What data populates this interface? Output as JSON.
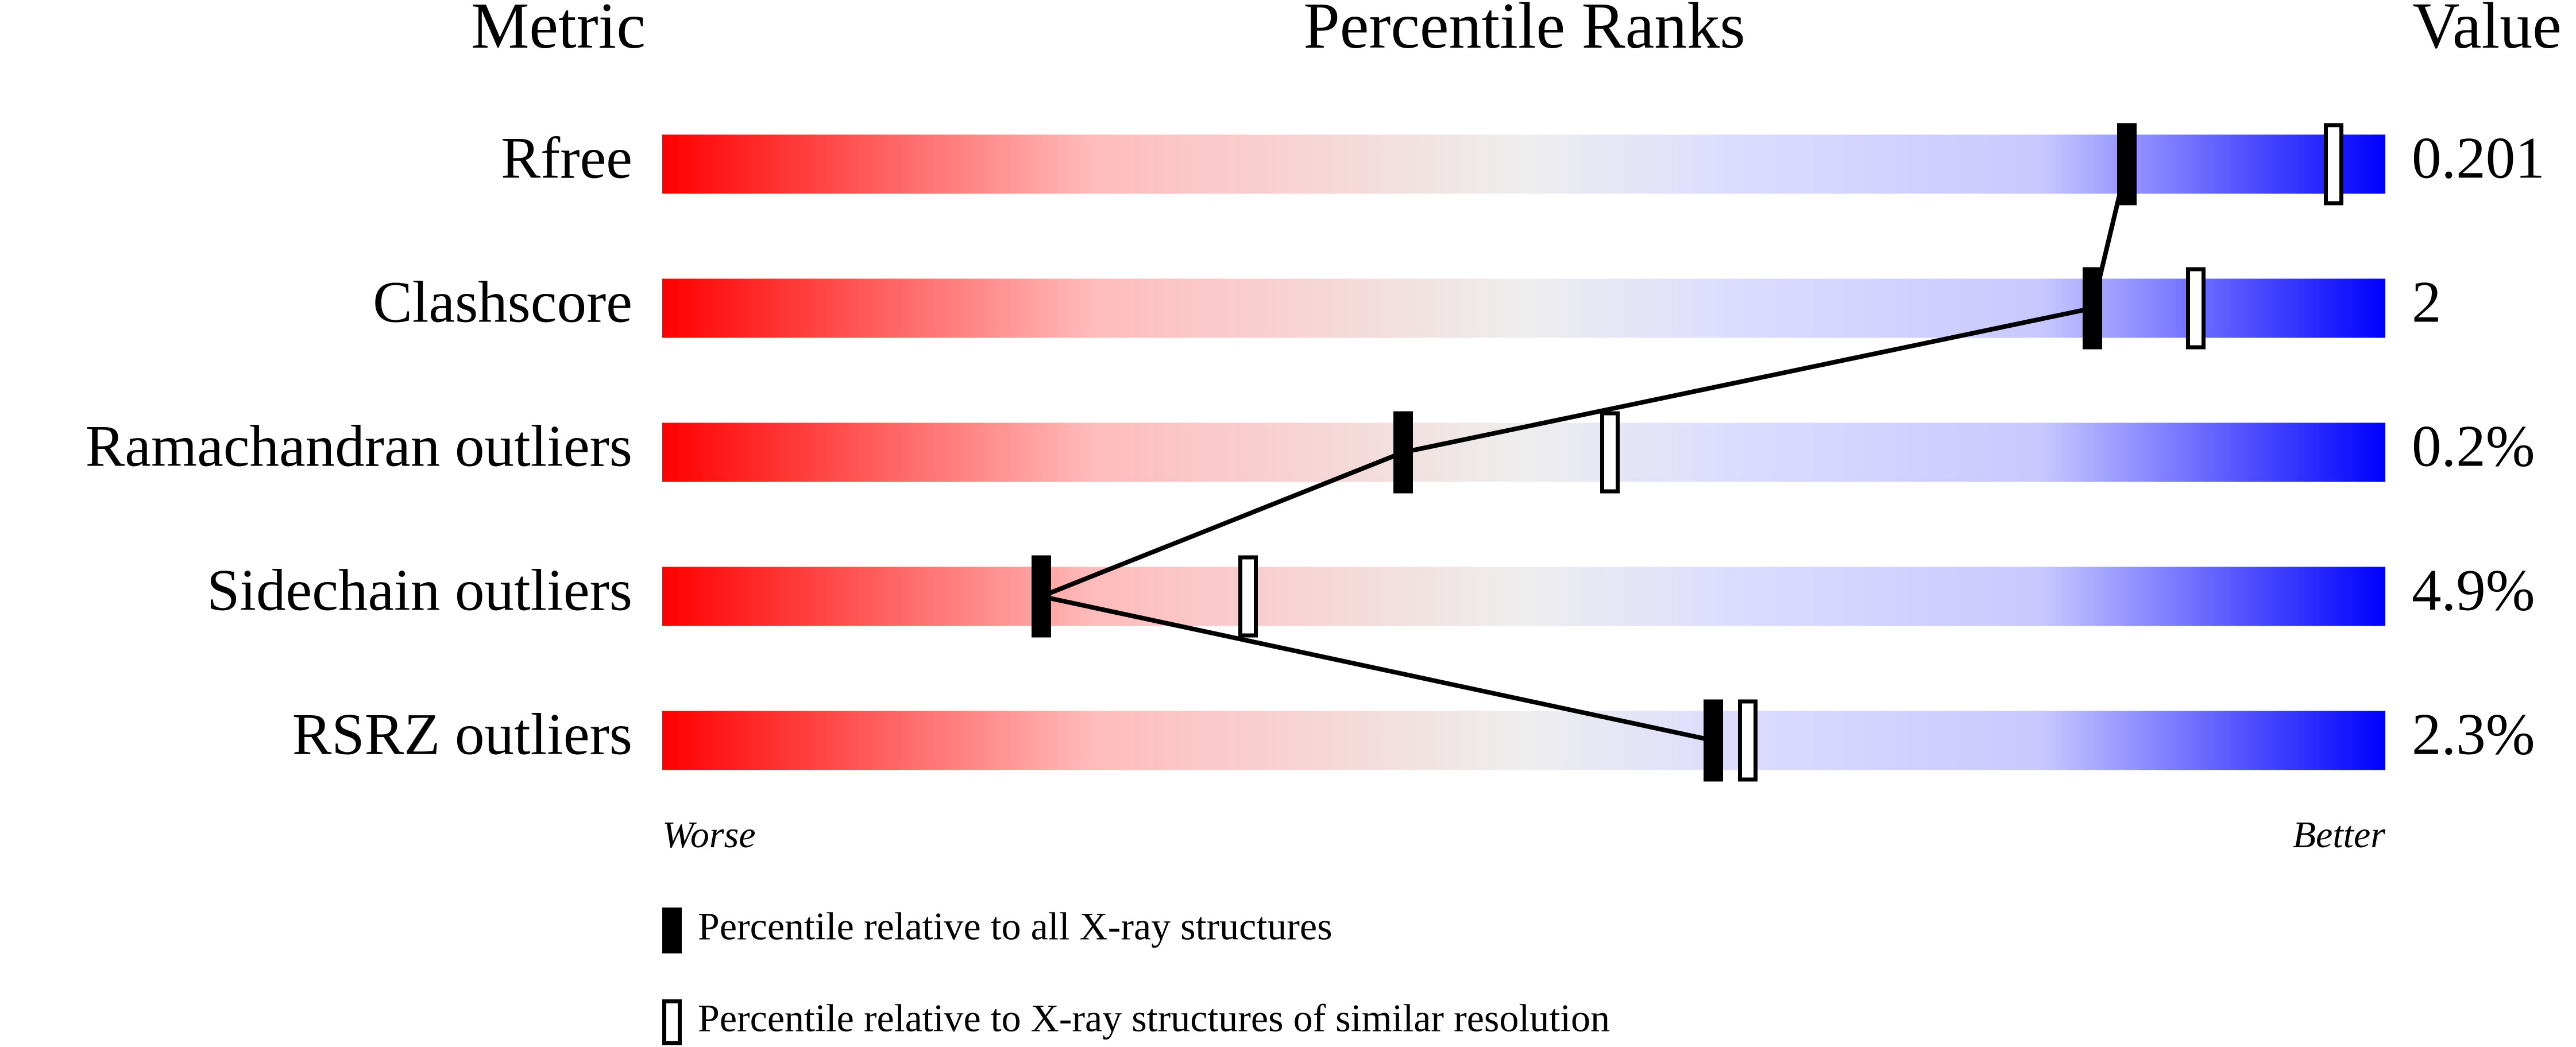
{
  "chart_data": {
    "type": "percentile-slider",
    "column_headers": [
      "Metric",
      "Percentile Ranks",
      "Value"
    ],
    "categories": [
      "Rfree",
      "Clashscore",
      "Ramachandran outliers",
      "Sidechain outliers",
      "RSRZ outliers"
    ],
    "metric_values": [
      "0.201",
      "2",
      "0.2%",
      "4.9%",
      "2.3%"
    ],
    "xlim": [
      0,
      100
    ],
    "xlabels": [
      "Worse",
      "Better"
    ],
    "series": [
      {
        "name": "Percentile relative to all X-ray structures",
        "color": "#000000",
        "filled": true,
        "values": [
          85,
          83,
          43,
          22,
          61
        ]
      },
      {
        "name": "Percentile relative to X-ray structures of similar resolution",
        "color": "#000000",
        "filled": false,
        "values": [
          97,
          89,
          55,
          34,
          63
        ]
      }
    ]
  }
}
